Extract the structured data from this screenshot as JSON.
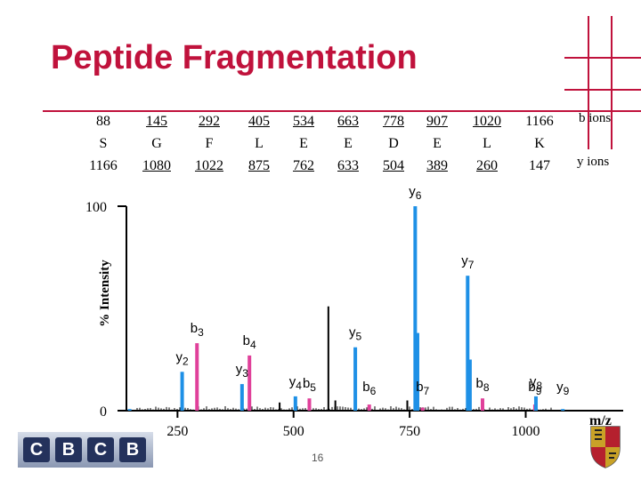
{
  "title": "Peptide Fragmentation",
  "fragment_table": {
    "b_label": "b ions",
    "y_label": "y ions",
    "columns": [
      {
        "b": "88",
        "residue": "S",
        "y": "1166"
      },
      {
        "b": "145",
        "residue": "G",
        "y": "1080"
      },
      {
        "b": "292",
        "residue": "F",
        "y": "1022"
      },
      {
        "b": "405",
        "residue": "L",
        "y": "875"
      },
      {
        "b": "534",
        "residue": "E",
        "y": "762"
      },
      {
        "b": "663",
        "residue": "E",
        "y": "633"
      },
      {
        "b": "778",
        "residue": "D",
        "y": "504"
      },
      {
        "b": "907",
        "residue": "E",
        "y": "389"
      },
      {
        "b": "1020",
        "residue": "L",
        "y": "260"
      },
      {
        "b": "1166",
        "residue": "K",
        "y": "147"
      }
    ]
  },
  "colors": {
    "title": "#c0123c",
    "y_ion": "#1e90e6",
    "b_ion": "#e0409a",
    "other": "#000000"
  },
  "chart_data": {
    "type": "bar",
    "xlabel": "m/z",
    "ylabel": "% Intensity",
    "xlim": [
      140,
      1210
    ],
    "ylim": [
      0,
      100
    ],
    "x_ticks": [
      "250",
      "500",
      "750",
      "1000"
    ],
    "x_tick_values": [
      250,
      500,
      750,
      1000
    ],
    "y_ticks": [
      "0",
      "100"
    ],
    "y_tick_values": [
      0,
      100
    ],
    "peaks": [
      {
        "mz": 147,
        "intensity": 0.8,
        "ion": "y",
        "label": ""
      },
      {
        "mz": 260,
        "intensity": 19,
        "ion": "y",
        "label": "y2"
      },
      {
        "mz": 292,
        "intensity": 33,
        "ion": "b",
        "label": "b3"
      },
      {
        "mz": 389,
        "intensity": 13,
        "ion": "y",
        "label": "y3"
      },
      {
        "mz": 405,
        "intensity": 27,
        "ion": "b",
        "label": "b4"
      },
      {
        "mz": 470,
        "intensity": 4,
        "ion": "other",
        "label": ""
      },
      {
        "mz": 504,
        "intensity": 7,
        "ion": "y",
        "label": "y4"
      },
      {
        "mz": 534,
        "intensity": 6,
        "ion": "b",
        "label": "b5"
      },
      {
        "mz": 575,
        "intensity": 51,
        "ion": "other",
        "label": ""
      },
      {
        "mz": 590,
        "intensity": 5,
        "ion": "other",
        "label": ""
      },
      {
        "mz": 633,
        "intensity": 31,
        "ion": "y",
        "label": "y5"
      },
      {
        "mz": 663,
        "intensity": 3,
        "ion": "b",
        "label": "b6"
      },
      {
        "mz": 745,
        "intensity": 5,
        "ion": "other",
        "label": ""
      },
      {
        "mz": 762,
        "intensity": 100,
        "ion": "y",
        "label": "y6"
      },
      {
        "mz": 767,
        "intensity": 38,
        "ion": "y",
        "label": ""
      },
      {
        "mz": 778,
        "intensity": 1.5,
        "ion": "b",
        "label": "b7"
      },
      {
        "mz": 875,
        "intensity": 66,
        "ion": "y",
        "label": "y7"
      },
      {
        "mz": 880,
        "intensity": 25,
        "ion": "y",
        "label": ""
      },
      {
        "mz": 907,
        "intensity": 6,
        "ion": "b",
        "label": "b8"
      },
      {
        "mz": 1020,
        "intensity": 3,
        "ion": "b",
        "label": "b9"
      },
      {
        "mz": 1022,
        "intensity": 7,
        "ion": "y",
        "label": "y8"
      },
      {
        "mz": 1080,
        "intensity": 0.8,
        "ion": "y",
        "label": "y9"
      }
    ]
  },
  "footer": {
    "page_number": "16",
    "logo_letters": [
      "C",
      "B",
      "C",
      "B"
    ]
  }
}
